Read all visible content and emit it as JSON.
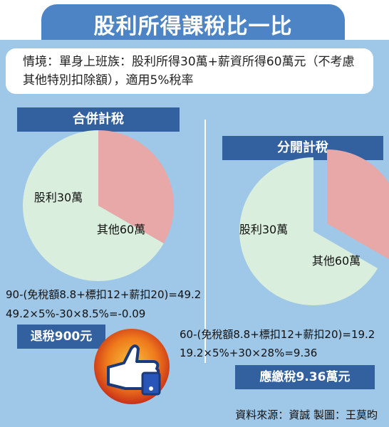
{
  "title": "股利所得課稅比一比",
  "context": "情境：單身上班族：股利所得30萬+薪資所得60萬元（不考慮其他特別扣除額），適用5%稅率",
  "chart_data": [
    {
      "type": "pie",
      "title": "合併計稅",
      "categories": [
        "股利30萬",
        "其他60萬"
      ],
      "values": [
        30,
        60
      ],
      "colors": [
        "#e8a8a8",
        "#d9eedc"
      ]
    },
    {
      "type": "pie",
      "title": "分開計稅",
      "categories": [
        "股利30萬",
        "其他60萬"
      ],
      "values": [
        30,
        60
      ],
      "colors": [
        "#e8a8a8",
        "#d9eedc"
      ],
      "exploded": "股利30萬"
    }
  ],
  "left": {
    "calc1": "90-(免稅額8.8+標扣12+薪扣20)=49.2",
    "calc2": "49.2×5%-30×8.5%=-0.09",
    "result": "退稅900元"
  },
  "right": {
    "calc1": "60-(免稅額8.8+標扣12+薪扣20)=19.2",
    "calc2": "19.2×5%+30×28%=9.36",
    "result": "應繳稅9.36萬元"
  },
  "source": "資料來源：資誠 製圖：王莫昀",
  "icons": [
    "thumbs-up-icon"
  ]
}
